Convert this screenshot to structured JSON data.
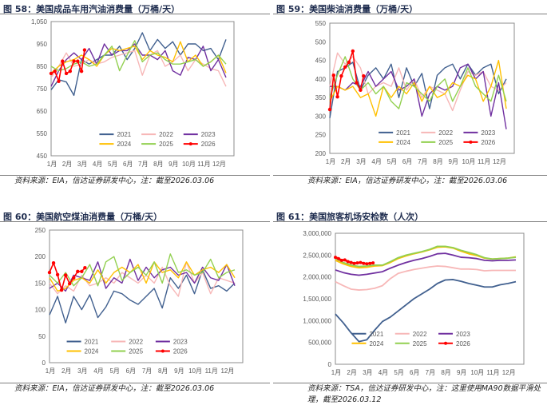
{
  "panels": [
    {
      "title": "图 58：美国成品车用汽油消费量（万桶/天）",
      "source": "资料来源：EIA，信达证券研发中心，注：截至2026.03.06"
    },
    {
      "title": "图 59：美国柴油消费量（万桶/天）",
      "source": "资料来源：EIA，信达证券研发中心，注：截至2026.03.06"
    },
    {
      "title": "图 60：美国航空煤油消费量（万桶/天）",
      "source": "资料来源：EIA，信达证券研发中心，注：截至2026.03.06"
    },
    {
      "title": "图 61：美国旅客机场安检数（人次）",
      "source": "资料来源：TSA，信达证券研发中心，注：这里使用MA90数据平滑处理，截至2026.03.12"
    }
  ],
  "colors": {
    "2021": "#41608f",
    "2022": "#f7b7b7",
    "2023": "#7030a0",
    "2024": "#ffc000",
    "2025": "#92d050",
    "2026": "#ff0000"
  },
  "chart_data": [
    {
      "type": "line",
      "title": "美国成品车用汽油消费量（万桶/天）",
      "ylim": [
        450,
        1050
      ],
      "yticks": [
        450,
        550,
        650,
        750,
        850,
        950,
        1050
      ],
      "ytick_labels": [
        "450",
        "550",
        "650",
        "750",
        "850",
        "950",
        "1,050"
      ],
      "xlabels": [
        "1月",
        "2月",
        "3月",
        "4月",
        "5月",
        "6月",
        "7月",
        "8月",
        "9月",
        "10月",
        "11月",
        "12月"
      ],
      "xlim": [
        0,
        11.5
      ],
      "legend": "bottom-center, 3 columns",
      "series": [
        {
          "name": "2021",
          "values": [
            745,
            790,
            780,
            720,
            880,
            860,
            880,
            900,
            900,
            940,
            880,
            930,
            1000,
            920,
            970,
            930,
            960,
            900,
            950,
            950,
            920,
            930,
            880,
            970
          ]
        },
        {
          "name": "2022",
          "values": [
            800,
            850,
            910,
            850,
            860,
            880,
            860,
            870,
            890,
            900,
            910,
            920,
            810,
            900,
            920,
            850,
            870,
            900,
            830,
            880,
            860,
            840,
            830,
            760
          ]
        },
        {
          "name": "2023",
          "values": [
            760,
            830,
            880,
            910,
            880,
            930,
            860,
            950,
            900,
            920,
            920,
            950,
            900,
            900,
            880,
            920,
            830,
            810,
            890,
            880,
            940,
            830,
            880,
            800
          ]
        },
        {
          "name": "2024",
          "values": [
            820,
            850,
            870,
            880,
            900,
            880,
            850,
            900,
            930,
            920,
            930,
            940,
            880,
            920,
            900,
            890,
            870,
            960,
            870,
            900,
            850,
            870,
            900,
            820
          ]
        },
        {
          "name": "2025",
          "values": [
            850,
            830,
            840,
            860,
            870,
            850,
            860,
            900,
            940,
            830,
            900,
            965,
            870,
            900,
            910,
            880,
            860,
            860,
            870,
            880,
            850,
            870,
            900,
            860
          ]
        },
        {
          "name": "2026",
          "marker": true,
          "x": [
            0,
            0.25,
            0.5,
            0.75,
            1.0,
            1.25,
            1.5,
            1.75,
            2.0,
            2.2
          ],
          "values": [
            818,
            828,
            783,
            873,
            818,
            828,
            873,
            873,
            828,
            923
          ]
        }
      ]
    },
    {
      "type": "line",
      "title": "美国柴油消费量（万桶/天）",
      "ylim": [
        200,
        550
      ],
      "yticks": [
        200,
        250,
        300,
        350,
        400,
        450,
        500,
        550
      ],
      "ytick_labels": [
        "200",
        "250",
        "300",
        "350",
        "400",
        "450",
        "500",
        "550"
      ],
      "xlabels": [
        "1月",
        "2月",
        "3月",
        "4月",
        "5月",
        "6月",
        "7月",
        "8月",
        "9月",
        "10月",
        "11月",
        "12月"
      ],
      "xlim": [
        0,
        11.5
      ],
      "legend": "bottom-center, 3 columns",
      "series": [
        {
          "name": "2021",
          "values": [
            295,
            420,
            430,
            445,
            370,
            410,
            430,
            400,
            440,
            350,
            430,
            380,
            415,
            320,
            410,
            430,
            440,
            400,
            440,
            410,
            430,
            440,
            360,
            400
          ]
        },
        {
          "name": "2022",
          "values": [
            380,
            470,
            440,
            460,
            430,
            360,
            380,
            390,
            380,
            430,
            370,
            400,
            350,
            380,
            370,
            360,
            315,
            370,
            420,
            410,
            420,
            380,
            370,
            390
          ]
        },
        {
          "name": "2023",
          "values": [
            380,
            380,
            370,
            390,
            380,
            420,
            380,
            400,
            420,
            370,
            380,
            400,
            300,
            360,
            380,
            370,
            380,
            430,
            440,
            400,
            420,
            300,
            390,
            265
          ]
        },
        {
          "name": "2024",
          "values": [
            340,
            380,
            370,
            380,
            350,
            360,
            300,
            380,
            350,
            380,
            360,
            390,
            340,
            380,
            350,
            360,
            390,
            380,
            410,
            400,
            340,
            380,
            450,
            320
          ]
        },
        {
          "name": "2025",
          "values": [
            350,
            410,
            460,
            400,
            370,
            390,
            360,
            380,
            340,
            320,
            390,
            380,
            360,
            340,
            380,
            400,
            340,
            380,
            430,
            380,
            360,
            340,
            410,
            340
          ]
        },
        {
          "name": "2026",
          "marker": true,
          "x": [
            0,
            0.25,
            0.5,
            0.75,
            1.0,
            1.25,
            1.5,
            1.75,
            2.0,
            2.2
          ],
          "values": [
            318,
            410,
            352,
            408,
            432,
            445,
            475,
            390,
            370,
            408
          ]
        }
      ]
    },
    {
      "type": "line",
      "title": "美国航空煤油消费量（万桶/天）",
      "ylim": [
        0,
        250
      ],
      "yticks": [
        0,
        50,
        100,
        150,
        200,
        250
      ],
      "ytick_labels": [
        "0",
        "50",
        "100",
        "150",
        "200",
        "250"
      ],
      "xlabels": [
        "1月",
        "2月",
        "3月",
        "4月",
        "5月",
        "6月",
        "7月",
        "8月",
        "9月",
        "10月",
        "11月",
        "12月"
      ],
      "xlim": [
        0,
        11.5
      ],
      "legend": "bottom-center, 3 columns",
      "series": [
        {
          "name": "2021",
          "values": [
            90,
            125,
            75,
            125,
            100,
            128,
            85,
            105,
            135,
            130,
            118,
            110,
            125,
            140,
            103,
            160,
            140,
            165,
            130,
            175,
            140,
            145,
            135,
            150
          ]
        },
        {
          "name": "2022",
          "values": [
            150,
            130,
            145,
            135,
            165,
            145,
            150,
            160,
            150,
            170,
            160,
            150,
            165,
            150,
            180,
            145,
            125,
            190,
            150,
            170,
            130,
            160,
            155,
            150
          ]
        },
        {
          "name": "2023",
          "values": [
            140,
            150,
            135,
            165,
            160,
            155,
            190,
            140,
            160,
            150,
            195,
            155,
            180,
            160,
            175,
            180,
            165,
            170,
            150,
            180,
            160,
            155,
            185,
            145
          ]
        },
        {
          "name": "2024",
          "values": [
            160,
            135,
            140,
            155,
            160,
            150,
            175,
            150,
            170,
            180,
            170,
            185,
            150,
            190,
            170,
            175,
            160,
            190,
            165,
            175,
            180,
            170,
            185,
            160
          ]
        },
        {
          "name": "2025",
          "values": [
            165,
            150,
            170,
            145,
            160,
            185,
            145,
            190,
            200,
            155,
            170,
            180,
            165,
            190,
            150,
            205,
            170,
            175,
            165,
            170,
            195,
            160,
            170,
            175
          ]
        },
        {
          "name": "2026",
          "marker": true,
          "x": [
            0,
            0.25,
            0.5,
            0.75,
            1.0,
            1.25,
            1.5,
            1.75,
            2.0,
            2.2
          ],
          "values": [
            170,
            188,
            166,
            137,
            165,
            149,
            160,
            172,
            172,
            179
          ]
        }
      ]
    },
    {
      "type": "line",
      "title": "美国旅客机场安检数（人次）",
      "ylim": [
        0,
        3000000
      ],
      "yticks": [
        0,
        500000,
        1000000,
        1500000,
        2000000,
        2500000,
        3000000
      ],
      "ytick_labels": [
        "0",
        "500,000",
        "1,000,000",
        "1,500,000",
        "2,000,000",
        "2,500,000",
        "3,000,000"
      ],
      "xlabels": [
        "1月",
        "2月",
        "3月",
        "4月",
        "5月",
        "6月",
        "7月",
        "8月",
        "9月",
        "10月",
        "11月",
        "12月"
      ],
      "xlim": [
        0,
        11.5
      ],
      "legend": "bottom-center, 3 columns",
      "series": [
        {
          "name": "2021",
          "values": [
            1150000,
            950000,
            720000,
            520000,
            560000,
            780000,
            980000,
            1080000,
            1220000,
            1360000,
            1500000,
            1610000,
            1720000,
            1850000,
            1930000,
            1940000,
            1900000,
            1850000,
            1810000,
            1770000,
            1770000,
            1820000,
            1850000,
            1890000
          ]
        },
        {
          "name": "2022",
          "values": [
            1890000,
            1800000,
            1720000,
            1700000,
            1710000,
            1740000,
            1800000,
            1960000,
            2080000,
            2130000,
            2170000,
            2200000,
            2230000,
            2250000,
            2240000,
            2210000,
            2180000,
            2180000,
            2170000,
            2140000,
            2150000,
            2150000,
            2150000,
            2150000
          ]
        },
        {
          "name": "2023",
          "values": [
            2160000,
            2100000,
            2060000,
            2040000,
            2060000,
            2090000,
            2120000,
            2200000,
            2270000,
            2330000,
            2380000,
            2420000,
            2470000,
            2530000,
            2540000,
            2500000,
            2450000,
            2440000,
            2420000,
            2380000,
            2370000,
            2380000,
            2380000,
            2390000
          ]
        },
        {
          "name": "2024",
          "values": [
            2380000,
            2300000,
            2240000,
            2210000,
            2220000,
            2250000,
            2260000,
            2330000,
            2420000,
            2480000,
            2530000,
            2570000,
            2620000,
            2680000,
            2690000,
            2660000,
            2590000,
            2530000,
            2490000,
            2430000,
            2410000,
            2420000,
            2430000,
            2460000
          ]
        },
        {
          "name": "2025",
          "values": [
            2420000,
            2330000,
            2270000,
            2240000,
            2250000,
            2270000,
            2270000,
            2350000,
            2440000,
            2500000,
            2540000,
            2580000,
            2630000,
            2700000,
            2700000,
            2670000,
            2610000,
            2560000,
            2510000,
            2440000,
            2410000,
            2420000,
            2430000,
            2450000
          ]
        },
        {
          "name": "2026",
          "marker": true,
          "x": [
            0,
            0.2,
            0.4,
            0.6,
            0.8,
            1.0,
            1.2,
            1.4,
            1.6,
            1.8,
            2.0,
            2.2,
            2.4
          ],
          "values": [
            2450000,
            2420000,
            2380000,
            2390000,
            2350000,
            2330000,
            2310000,
            2320000,
            2330000,
            2310000,
            2300000,
            2310000,
            2320000
          ]
        }
      ]
    }
  ]
}
